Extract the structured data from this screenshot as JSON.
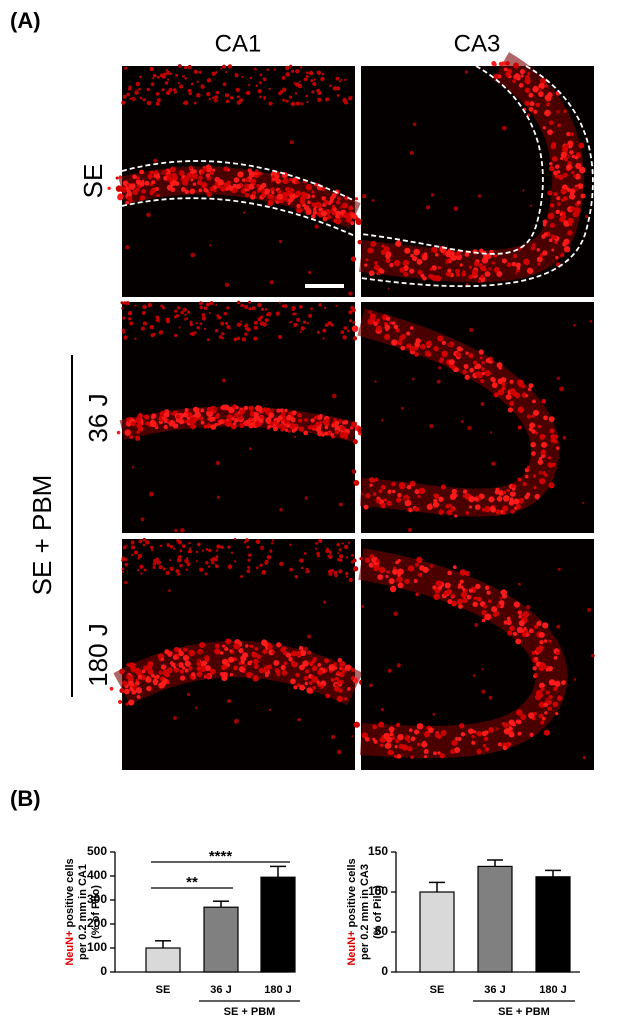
{
  "panel_a": {
    "label": "(A)",
    "columns": [
      "CA1",
      "CA3"
    ],
    "rows": [
      "SE"
    ],
    "group_label": "SE + PBM",
    "group_rows": [
      "36 J",
      "180 J"
    ]
  },
  "panel_b": {
    "label": "(B)"
  },
  "chart_data": [
    {
      "type": "bar",
      "y_label_marker": "NeuN+",
      "y_label_lines": [
        "positive cells",
        "per 0.2 mm in CA1",
        "(% of Pilo)"
      ],
      "categories": [
        "SE",
        "36 J",
        "180 J"
      ],
      "values": [
        100,
        270,
        395
      ],
      "errors": [
        30,
        25,
        45
      ],
      "colors": [
        "#d9d9d9",
        "#808080",
        "#000000"
      ],
      "ylim": [
        0,
        500
      ],
      "yticks": [
        0,
        100,
        200,
        300,
        400,
        500
      ],
      "group_label": "SE + PBM",
      "group_categories": [
        "36 J",
        "180 J"
      ],
      "significance": [
        {
          "label": "****",
          "between": [
            "SE",
            "180 J"
          ]
        },
        {
          "label": "**",
          "between": [
            "SE",
            "36 J"
          ]
        }
      ]
    },
    {
      "type": "bar",
      "y_label_marker": "NeuN+",
      "y_label_lines": [
        "positive cells",
        "per 0.2 mm in CA3",
        "(% of Pilo)"
      ],
      "categories": [
        "SE",
        "36 J",
        "180 J"
      ],
      "values": [
        100,
        132,
        119
      ],
      "errors": [
        12,
        8,
        8
      ],
      "colors": [
        "#d9d9d9",
        "#808080",
        "#000000"
      ],
      "ylim": [
        0,
        150
      ],
      "yticks": [
        0,
        50,
        100,
        150
      ],
      "group_label": "SE + PBM",
      "group_categories": [
        "36 J",
        "180 J"
      ],
      "significance": []
    }
  ]
}
